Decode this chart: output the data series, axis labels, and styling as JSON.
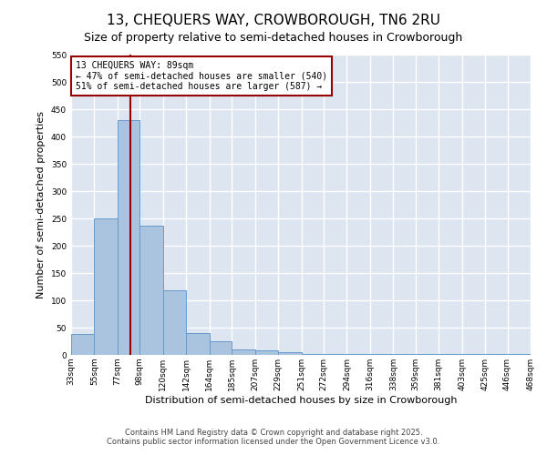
{
  "title": "13, CHEQUERS WAY, CROWBOROUGH, TN6 2RU",
  "subtitle": "Size of property relative to semi-detached houses in Crowborough",
  "xlabel": "Distribution of semi-detached houses by size in Crowborough",
  "ylabel": "Number of semi-detached properties",
  "bar_color": "#aac4e0",
  "bar_edge_color": "#6699cc",
  "background_color": "#dde6f0",
  "grid_color": "#ffffff",
  "bin_edges": [
    33,
    55,
    77,
    98,
    120,
    142,
    164,
    185,
    207,
    229,
    251,
    272,
    294,
    316,
    338,
    359,
    381,
    403,
    425,
    446,
    468
  ],
  "bar_heights": [
    38,
    250,
    430,
    237,
    118,
    40,
    25,
    10,
    8,
    5,
    2,
    2,
    2,
    2,
    2,
    2,
    2,
    2,
    2,
    2
  ],
  "property_size": 89,
  "vline_color": "#990000",
  "annotation_title": "13 CHEQUERS WAY: 89sqm",
  "annotation_line2": "← 47% of semi-detached houses are smaller (540)",
  "annotation_line3": "51% of semi-detached houses are larger (587) →",
  "annotation_box_color": "#ffffff",
  "annotation_border_color": "#990000",
  "ylim": [
    0,
    550
  ],
  "yticks": [
    0,
    50,
    100,
    150,
    200,
    250,
    300,
    350,
    400,
    450,
    500,
    550
  ],
  "tick_labels": [
    "33sqm",
    "55sqm",
    "77sqm",
    "98sqm",
    "120sqm",
    "142sqm",
    "164sqm",
    "185sqm",
    "207sqm",
    "229sqm",
    "251sqm",
    "272sqm",
    "294sqm",
    "316sqm",
    "338sqm",
    "359sqm",
    "381sqm",
    "403sqm",
    "425sqm",
    "446sqm",
    "468sqm"
  ],
  "footer1": "Contains HM Land Registry data © Crown copyright and database right 2025.",
  "footer2": "Contains public sector information licensed under the Open Government Licence v3.0.",
  "title_fontsize": 11,
  "subtitle_fontsize": 9,
  "axis_label_fontsize": 8,
  "tick_fontsize": 6.5,
  "footer_fontsize": 6
}
